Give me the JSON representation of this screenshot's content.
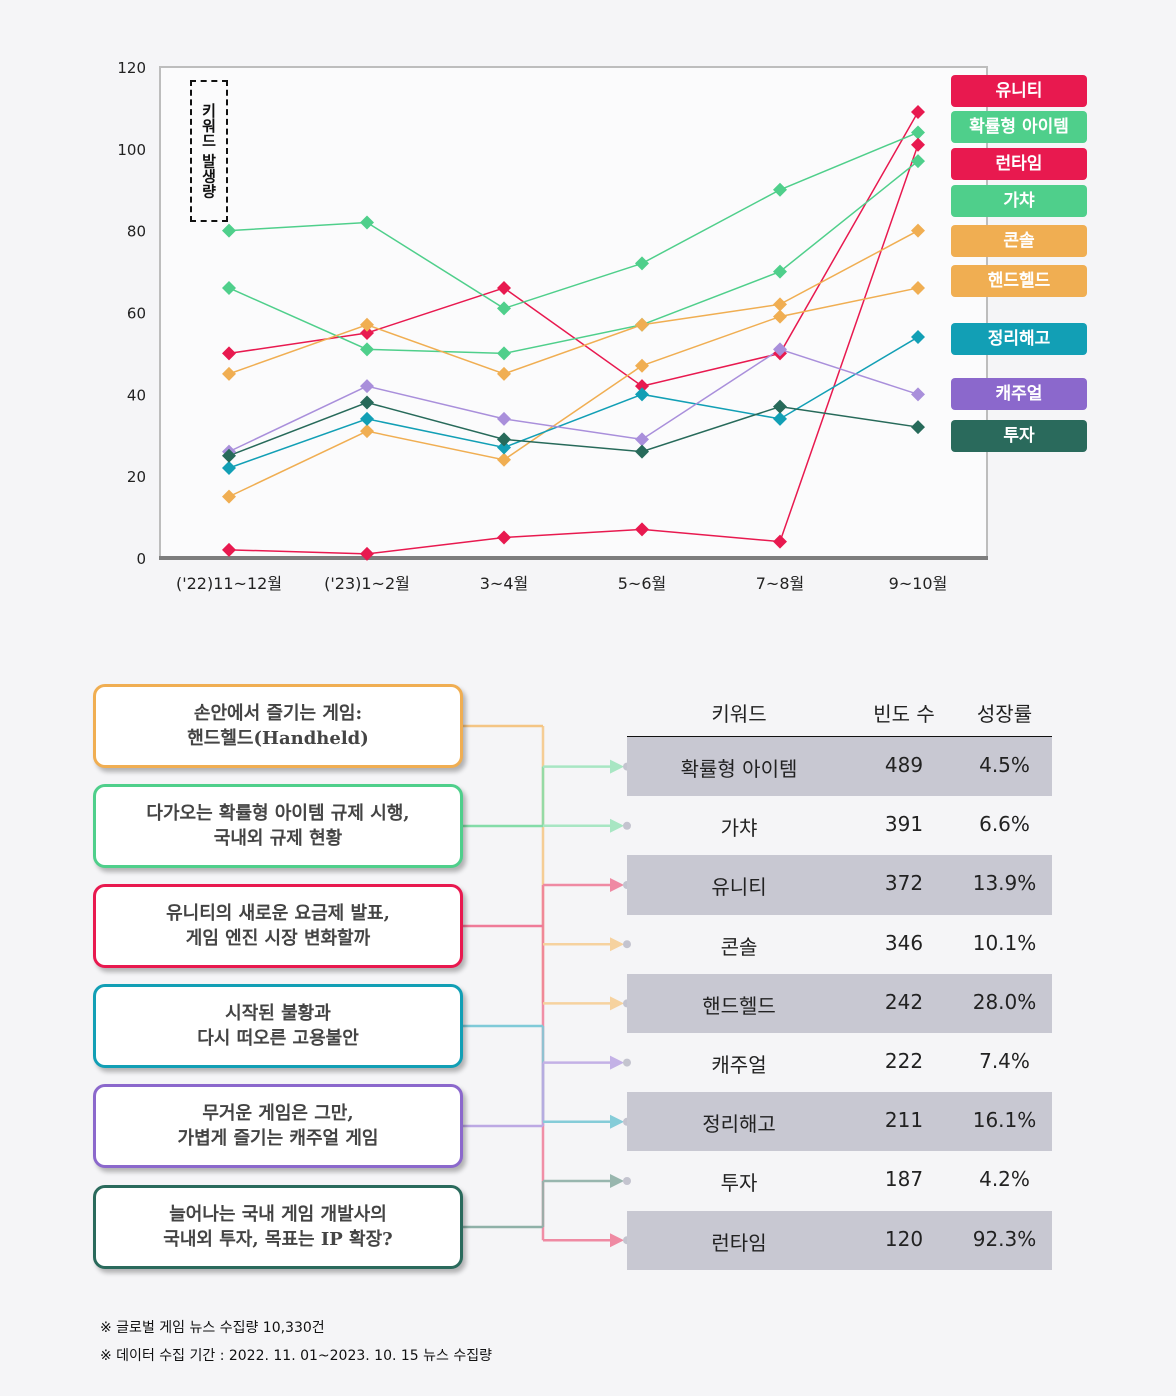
{
  "chart_data": {
    "type": "line",
    "title": "",
    "ylabel": "키워드 발생량",
    "xlabel": "",
    "ylim": [
      0,
      120
    ],
    "yticks": [
      0,
      20,
      40,
      60,
      80,
      100,
      120
    ],
    "ytick_labels": [
      "0",
      "20",
      "40",
      "60",
      "80",
      "100",
      "120"
    ],
    "categories": [
      "('22)11~12월",
      "('23)1~2월",
      "3~4월",
      "5~6월",
      "7~8월",
      "9~10월"
    ],
    "legend_position": "right",
    "grid": false,
    "marker": "diamond",
    "series": [
      {
        "name": "유니티",
        "color": "#e8194f",
        "values": [
          50,
          55,
          66,
          42,
          50,
          109
        ]
      },
      {
        "name": "확률형 아이템",
        "color": "#4fcf8b",
        "values": [
          80,
          82,
          61,
          72,
          90,
          104
        ]
      },
      {
        "name": "런타임",
        "color": "#e8194f",
        "values": [
          2,
          1,
          5,
          7,
          4,
          101
        ]
      },
      {
        "name": "가챠",
        "color": "#4fcf8b",
        "values": [
          66,
          51,
          50,
          57,
          70,
          97
        ]
      },
      {
        "name": "콘솔",
        "color": "#f0ae52",
        "values": [
          45,
          57,
          45,
          57,
          62,
          80
        ]
      },
      {
        "name": "핸드헬드",
        "color": "#f0ae52",
        "values": [
          15,
          31,
          24,
          47,
          59,
          66
        ]
      },
      {
        "name": "정리해고",
        "color": "#129fb5",
        "values": [
          22,
          34,
          27,
          40,
          34,
          54
        ]
      },
      {
        "name": "캐주얼",
        "color": "#a98fdb",
        "values": [
          26,
          42,
          34,
          29,
          51,
          40
        ]
      },
      {
        "name": "투자",
        "color": "#276a5a",
        "values": [
          25,
          38,
          29,
          26,
          37,
          32
        ]
      }
    ]
  },
  "legend": [
    {
      "label": "유니티",
      "color": "#e8194f"
    },
    {
      "label": "확률형 아이템",
      "color": "#4fcf8b"
    },
    {
      "label": "런타임",
      "color": "#e8194f"
    },
    {
      "label": "가챠",
      "color": "#4fcf8b"
    },
    {
      "label": "콘솔",
      "color": "#f0ae52"
    },
    {
      "label": "핸드헬드",
      "color": "#f0ae52"
    },
    {
      "label": "정리해고",
      "color": "#129fb5"
    },
    {
      "label": "캐주얼",
      "color": "#8b68cc"
    },
    {
      "label": "투자",
      "color": "#2a6a5c"
    }
  ],
  "headlines": [
    {
      "text": "손안에서 즐기는 게임:\n핸드헬드(Handheld)",
      "color": "#f0ae52",
      "targets": [
        4
      ],
      "line_color": "#f4c584"
    },
    {
      "text": "다가오는 확률형 아이템 규제 시행,\n국내외 규제 현황",
      "color": "#4fcf8b",
      "targets": [
        0,
        1
      ],
      "line_color": "#84dca8"
    },
    {
      "text": "유니티의 새로운 요금제 발표,\n게임 엔진 시장 변화할까",
      "color": "#e8194f",
      "targets": [
        2,
        8
      ],
      "line_color": "#ef7b98"
    },
    {
      "text": "시작된 불황과\n다시 떠오른 고용불안",
      "color": "#129fb5",
      "targets": [
        6
      ],
      "line_color": "#7fcad8"
    },
    {
      "text": "무거운 게임은 그만,\n가볍게 즐기는 캐주얼 게임",
      "color": "#8b68cc",
      "targets": [
        5
      ],
      "line_color": "#bca8e3"
    },
    {
      "text": "늘어나는 국내 게임 개발사의\n국내외 투자, 목표는 IP 확장?",
      "color": "#2a6a5c",
      "targets": [
        7
      ],
      "line_color": "#8fb1a8"
    }
  ],
  "table": {
    "headers": [
      "키워드",
      "빈도 수",
      "성장률"
    ],
    "rows": [
      {
        "keyword": "확률형 아이템",
        "frequency": "489",
        "growth": "4.5%",
        "arrow_color": "#a8e6c3"
      },
      {
        "keyword": "가챠",
        "frequency": "391",
        "growth": "6.6%",
        "arrow_color": "#a8e6c3"
      },
      {
        "keyword": "유니티",
        "frequency": "372",
        "growth": "13.9%",
        "arrow_color": "#ef8aa3"
      },
      {
        "keyword": "콘솔",
        "frequency": "346",
        "growth": "10.1%",
        "arrow_color": "#f6d29f"
      },
      {
        "keyword": "핸드헬드",
        "frequency": "242",
        "growth": "28.0%",
        "arrow_color": "#f6d29f"
      },
      {
        "keyword": "캐주얼",
        "frequency": "222",
        "growth": "7.4%",
        "arrow_color": "#c3b1e6"
      },
      {
        "keyword": "정리해고",
        "frequency": "211",
        "growth": "16.1%",
        "arrow_color": "#85ccd8"
      },
      {
        "keyword": "투자",
        "frequency": "187",
        "growth": "4.2%",
        "arrow_color": "#98b6ae"
      },
      {
        "keyword": "런타임",
        "frequency": "120",
        "growth": "92.3%",
        "arrow_color": "#ef8aa3"
      }
    ]
  },
  "notes": [
    "※ 글로벌 게임 뉴스 수집량 10,330건",
    "※ 데이터 수집 기간 : 2022. 11. 01~2023. 10. 15 뉴스 수집량"
  ]
}
